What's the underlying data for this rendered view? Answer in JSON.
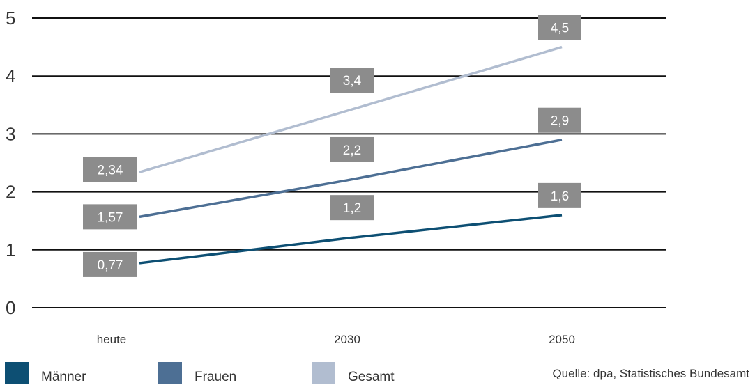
{
  "chart_data": {
    "type": "line",
    "categories": [
      "heute",
      "2030",
      "2050"
    ],
    "series": [
      {
        "name": "Männer",
        "color": "#0d4f73",
        "values": [
          0.77,
          1.2,
          1.6
        ],
        "labels": [
          "0,77",
          "1,2",
          "1,6"
        ]
      },
      {
        "name": "Frauen",
        "color": "#4d6f94",
        "values": [
          1.57,
          2.2,
          2.9
        ],
        "labels": [
          "1,57",
          "2,2",
          "2,9"
        ]
      },
      {
        "name": "Gesamt",
        "color": "#b1bdd0",
        "values": [
          2.34,
          3.4,
          4.5
        ],
        "labels": [
          "2,34",
          "3,4",
          "4,5"
        ]
      }
    ],
    "yticks": [
      "0",
      "1",
      "2",
      "3",
      "4",
      "5"
    ],
    "ylim": [
      0,
      5
    ],
    "grid": true,
    "legend": "bottom",
    "label_box_color": "#8c8c8c"
  },
  "source": "Quelle: dpa, Statistisches Bundesamt"
}
